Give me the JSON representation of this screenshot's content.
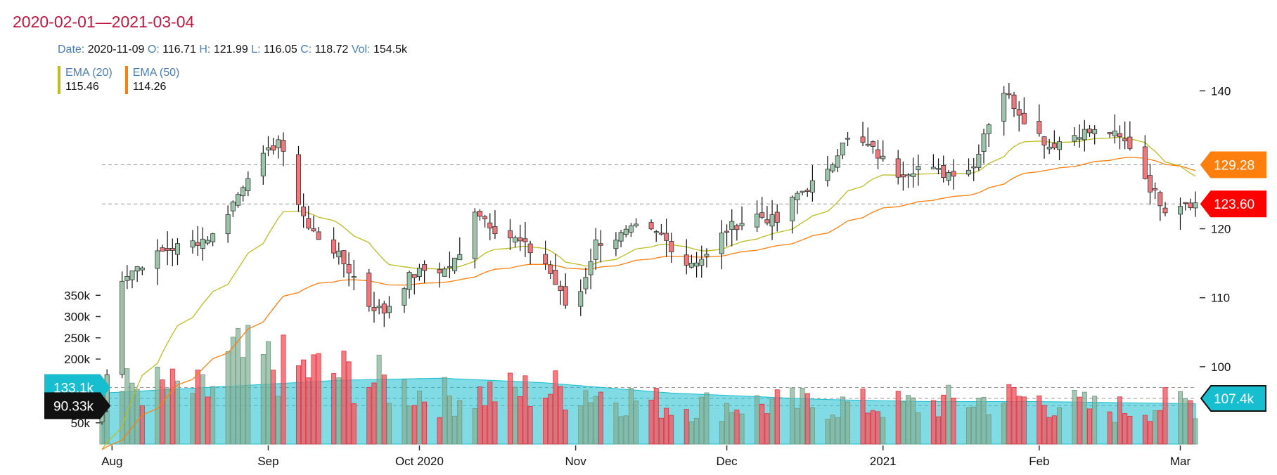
{
  "chart_data": {
    "type": "candlestick",
    "title": "2020-02-01—2021-03-04",
    "header": {
      "date_label": "Date:",
      "date": "2020-11-09",
      "open_label": "O:",
      "open": "116.71",
      "high_label": "H:",
      "high": "121.99",
      "low_label": "L:",
      "low": "116.05",
      "close_label": "C:",
      "close": "118.72",
      "vol_label": "Vol:",
      "vol": "154.5k"
    },
    "legend": [
      {
        "name": "EMA (20)",
        "value": "115.46",
        "color": "#bcbd22"
      },
      {
        "name": "EMA (50)",
        "value": "114.26",
        "color": "#ff7f0e"
      }
    ],
    "x_ticks": [
      {
        "label": "Aug",
        "date": "2020-08-01"
      },
      {
        "label": "Sep",
        "date": "2020-09-01"
      },
      {
        "label": "Oct 2020",
        "date": "2020-10-01"
      },
      {
        "label": "Nov",
        "date": "2020-11-01"
      },
      {
        "label": "Dec",
        "date": "2020-12-01"
      },
      {
        "label": "2021",
        "date": "2021-01-01"
      },
      {
        "label": "Feb",
        "date": "2021-02-01"
      },
      {
        "label": "Mar",
        "date": "2021-03-01"
      }
    ],
    "price_axis": {
      "ticks": [
        100,
        110,
        120,
        140
      ],
      "range": [
        90,
        144
      ]
    },
    "volume_axis": {
      "ticks": [
        "50k",
        "100k",
        "150k",
        "200k",
        "250k",
        "300k",
        "350k"
      ],
      "range": [
        0,
        400000
      ]
    },
    "price_badges": [
      {
        "label": "129.28",
        "value": 129.28,
        "color": "#ff7f0e"
      },
      {
        "label": "123.60",
        "value": 123.6,
        "color": "#ff0000"
      }
    ],
    "volume_badges": [
      {
        "label": "133.1k",
        "value": 133100,
        "color": "#17becf"
      },
      {
        "label": "90.33k",
        "value": 90330,
        "color": "#111111"
      },
      {
        "label": "107.4k",
        "value": 107400,
        "color": "#17becf"
      }
    ],
    "colors": {
      "up": "#9bc4aa",
      "down": "#f0787c",
      "ema20": "#bcbd22",
      "ema50": "#ff7f0e",
      "vol_area": "#17becf"
    },
    "candle_anchors": [
      [
        "2020-07-30",
        94
      ],
      [
        "2020-08-03",
        113
      ],
      [
        "2020-08-07",
        115
      ],
      [
        "2020-08-12",
        117
      ],
      [
        "2020-08-17",
        118
      ],
      [
        "2020-08-21",
        119
      ],
      [
        "2020-08-26",
        125
      ],
      [
        "2020-08-28",
        128
      ],
      [
        "2020-09-01",
        131
      ],
      [
        "2020-09-03",
        133
      ],
      [
        "2020-09-05",
        128
      ],
      [
        "2020-09-09",
        120
      ],
      [
        "2020-09-14",
        117
      ],
      [
        "2020-09-18",
        113
      ],
      [
        "2020-09-21",
        109
      ],
      [
        "2020-09-24",
        108
      ],
      [
        "2020-09-29",
        113
      ],
      [
        "2020-10-02",
        114
      ],
      [
        "2020-10-06",
        114
      ],
      [
        "2020-10-09",
        116
      ],
      [
        "2020-10-12",
        123
      ],
      [
        "2020-10-16",
        120
      ],
      [
        "2020-10-21",
        118
      ],
      [
        "2020-10-26",
        115
      ],
      [
        "2020-10-30",
        109
      ],
      [
        "2020-11-02",
        111
      ],
      [
        "2020-11-05",
        118
      ],
      [
        "2020-11-09",
        118.72
      ],
      [
        "2020-11-13",
        120
      ],
      [
        "2020-11-18",
        119
      ],
      [
        "2020-11-23",
        115
      ],
      [
        "2020-11-27",
        116
      ],
      [
        "2020-12-01",
        120
      ],
      [
        "2020-12-07",
        122
      ],
      [
        "2020-12-11",
        121
      ],
      [
        "2020-12-15",
        125
      ],
      [
        "2020-12-21",
        128
      ],
      [
        "2020-12-24",
        133
      ],
      [
        "2020-12-29",
        132
      ],
      [
        "2021-01-04",
        128
      ],
      [
        "2021-01-08",
        129
      ],
      [
        "2021-01-13",
        128
      ],
      [
        "2021-01-19",
        129
      ],
      [
        "2021-01-21",
        134
      ],
      [
        "2021-01-25",
        140
      ],
      [
        "2021-01-29",
        136
      ],
      [
        "2021-02-03",
        132
      ],
      [
        "2021-02-09",
        134
      ],
      [
        "2021-02-15",
        134
      ],
      [
        "2021-02-19",
        132
      ],
      [
        "2021-02-23",
        126
      ],
      [
        "2021-02-26",
        123
      ],
      [
        "2021-03-02",
        124
      ],
      [
        "2021-03-04",
        123.6
      ]
    ],
    "volume_anchors": [
      [
        "2020-07-30",
        80000
      ],
      [
        "2020-08-05",
        140000
      ],
      [
        "2020-08-20",
        120000
      ],
      [
        "2020-08-25",
        200000
      ],
      [
        "2020-09-04",
        180000
      ],
      [
        "2020-09-18",
        160000
      ],
      [
        "2020-10-05",
        110000
      ],
      [
        "2020-10-15",
        120000
      ],
      [
        "2020-11-02",
        130000
      ],
      [
        "2020-11-20",
        90000
      ],
      [
        "2020-12-10",
        95000
      ],
      [
        "2021-01-05",
        90000
      ],
      [
        "2021-01-28",
        110000
      ],
      [
        "2021-02-15",
        80000
      ],
      [
        "2021-03-04",
        100000
      ]
    ],
    "vol_area_anchors": [
      [
        "2020-07-30",
        120000
      ],
      [
        "2020-08-15",
        130000
      ],
      [
        "2020-09-15",
        150000
      ],
      [
        "2020-10-05",
        155000
      ],
      [
        "2020-10-25",
        145000
      ],
      [
        "2020-11-20",
        120000
      ],
      [
        "2020-12-20",
        105000
      ],
      [
        "2021-01-10",
        100000
      ],
      [
        "2021-02-01",
        100000
      ],
      [
        "2021-03-04",
        95000
      ]
    ]
  }
}
